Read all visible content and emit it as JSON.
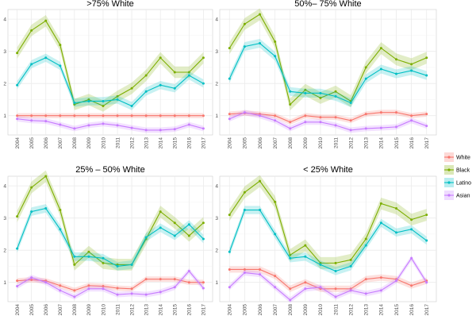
{
  "chart_data": [
    {
      "type": "line",
      "title": ">75% White",
      "x": [
        "2004",
        "2005",
        "2006",
        "2007",
        "2008",
        "2009",
        "2010",
        "2011",
        "2012",
        "2013",
        "2014",
        "2015",
        "2016",
        "2017"
      ],
      "ylim": [
        0.4,
        4.3
      ],
      "yticks": [
        1,
        2,
        3,
        4
      ],
      "grid": true,
      "series": [
        {
          "name": "White",
          "values": [
            1.0,
            1.0,
            1.0,
            1.0,
            1.0,
            1.0,
            1.0,
            1.0,
            1.0,
            1.0,
            1.0,
            1.0,
            1.0,
            1.0
          ]
        },
        {
          "name": "Black",
          "values": [
            2.95,
            3.65,
            3.95,
            3.2,
            1.35,
            1.5,
            1.3,
            1.6,
            1.85,
            2.25,
            2.8,
            2.35,
            2.35,
            2.8
          ]
        },
        {
          "name": "Latino",
          "values": [
            1.95,
            2.6,
            2.8,
            2.55,
            1.4,
            1.45,
            1.45,
            1.5,
            1.3,
            1.75,
            1.95,
            1.85,
            2.25,
            2.0
          ]
        },
        {
          "name": "Asian",
          "values": [
            0.9,
            0.85,
            0.83,
            0.72,
            0.6,
            0.7,
            0.75,
            0.7,
            0.62,
            0.55,
            0.55,
            0.58,
            0.72,
            0.6
          ]
        }
      ]
    },
    {
      "type": "line",
      "title": "50%– 75% White",
      "x": [
        "2004",
        "2005",
        "2006",
        "2007",
        "2008",
        "2009",
        "2010",
        "2011",
        "2012",
        "2013",
        "2014",
        "2015",
        "2016",
        "2017"
      ],
      "ylim": [
        0.4,
        4.3
      ],
      "yticks": [
        1,
        2,
        3,
        4
      ],
      "grid": true,
      "series": [
        {
          "name": "White",
          "values": [
            1.05,
            1.08,
            1.05,
            1.0,
            0.8,
            1.0,
            0.95,
            0.95,
            0.85,
            1.05,
            1.1,
            1.1,
            1.0,
            1.05
          ]
        },
        {
          "name": "Black",
          "values": [
            3.1,
            3.85,
            4.15,
            3.3,
            1.35,
            1.8,
            1.55,
            1.75,
            1.45,
            2.5,
            3.1,
            2.75,
            2.6,
            2.8
          ]
        },
        {
          "name": "Latino",
          "values": [
            2.15,
            3.15,
            3.25,
            2.85,
            1.75,
            1.7,
            1.7,
            1.6,
            1.4,
            2.15,
            2.45,
            2.3,
            2.4,
            2.25
          ]
        },
        {
          "name": "Asian",
          "values": [
            0.9,
            1.1,
            1.0,
            0.85,
            0.6,
            0.8,
            0.8,
            0.7,
            0.55,
            0.6,
            0.62,
            0.65,
            0.85,
            0.68
          ]
        }
      ]
    },
    {
      "type": "line",
      "title": "25% – 50% White",
      "x": [
        "2004",
        "2005",
        "2006",
        "2007",
        "2008",
        "2009",
        "2010",
        "2011",
        "2012",
        "2013",
        "2014",
        "2015",
        "2016",
        "2017"
      ],
      "ylim": [
        0.4,
        4.3
      ],
      "yticks": [
        1,
        2,
        3,
        4
      ],
      "grid": true,
      "series": [
        {
          "name": "White",
          "values": [
            1.05,
            1.08,
            1.05,
            0.9,
            0.75,
            0.9,
            0.88,
            0.82,
            0.8,
            1.1,
            1.1,
            1.1,
            1.0,
            1.0
          ]
        },
        {
          "name": "Black",
          "values": [
            3.05,
            3.95,
            4.3,
            3.25,
            1.55,
            1.95,
            1.6,
            1.55,
            1.55,
            2.35,
            3.2,
            2.85,
            2.45,
            2.85
          ]
        },
        {
          "name": "Latino",
          "values": [
            2.05,
            3.2,
            3.3,
            2.65,
            1.8,
            1.8,
            1.75,
            1.5,
            1.55,
            2.4,
            2.7,
            2.45,
            2.8,
            2.35
          ]
        },
        {
          "name": "Asian",
          "values": [
            0.88,
            1.15,
            1.0,
            0.75,
            0.55,
            0.8,
            0.8,
            0.62,
            0.65,
            0.62,
            0.7,
            0.85,
            1.35,
            0.82
          ]
        }
      ]
    },
    {
      "type": "line",
      "title": "< 25% White",
      "x": [
        "2004",
        "2005",
        "2006",
        "2007",
        "2008",
        "2009",
        "2010",
        "2011",
        "2012",
        "2013",
        "2014",
        "2015",
        "2016",
        "2017"
      ],
      "ylim": [
        0.4,
        4.3
      ],
      "yticks": [
        1,
        2,
        3,
        4
      ],
      "grid": true,
      "series": [
        {
          "name": "White",
          "values": [
            1.4,
            1.4,
            1.4,
            1.2,
            0.8,
            1.0,
            0.8,
            0.8,
            0.8,
            1.1,
            1.15,
            1.1,
            0.9,
            1.05
          ]
        },
        {
          "name": "Black",
          "values": [
            3.1,
            3.8,
            4.15,
            3.5,
            1.85,
            2.15,
            1.6,
            1.6,
            1.7,
            2.35,
            3.45,
            3.3,
            2.95,
            3.1
          ]
        },
        {
          "name": "Latino",
          "values": [
            1.95,
            3.25,
            3.25,
            2.5,
            1.75,
            1.8,
            1.55,
            1.35,
            1.5,
            2.15,
            2.85,
            2.55,
            2.65,
            2.3
          ]
        },
        {
          "name": "Asian",
          "values": [
            0.85,
            1.3,
            1.25,
            0.85,
            0.45,
            0.8,
            0.85,
            0.55,
            0.75,
            0.65,
            0.75,
            1.05,
            1.75,
            1.0
          ]
        }
      ]
    }
  ],
  "legend": {
    "placement": "right",
    "items": [
      {
        "label": "White",
        "color": "#f8766d"
      },
      {
        "label": "Black",
        "color": "#7cae00"
      },
      {
        "label": "Latino",
        "color": "#00bfc4"
      },
      {
        "label": "Asian",
        "color": "#c77cff"
      }
    ]
  },
  "colors": {
    "panel_background": "#ffffff",
    "grid": "#ebebeb",
    "axis_text": "#4d4d4d"
  }
}
